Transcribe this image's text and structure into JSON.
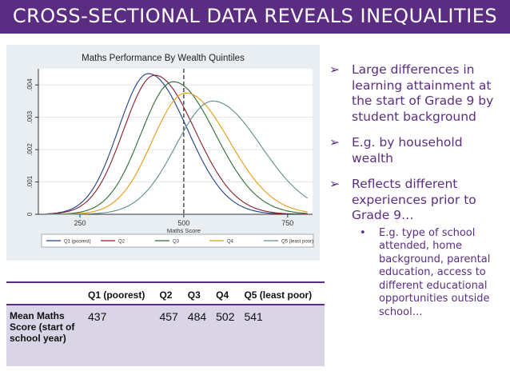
{
  "slide": {
    "title": "CROSS-SECTIONAL DATA REVEALS INEQUALITIES"
  },
  "chart_data": {
    "type": "line",
    "title": "Maths Performance By Wealth Quintiles",
    "xlabel": "Maths Score",
    "ylabel": "",
    "xlim": [
      150,
      810
    ],
    "ylim": [
      0,
      0.0045
    ],
    "x_ticks": [
      250,
      500,
      750
    ],
    "y_ticks": [
      0,
      0.001,
      0.002,
      0.003,
      0.004
    ],
    "x_tick_labels": [
      "250",
      "500",
      "750"
    ],
    "y_tick_labels": [
      "0",
      ".001",
      ".002",
      ".003",
      ".004"
    ],
    "reference_line_x": 500,
    "grid": true,
    "legend_position": "bottom",
    "series": [
      {
        "name": "Q1 (poorest)",
        "color": "#1f3e8c",
        "mean": 437,
        "peak_x": 415,
        "peak_y": 0.00435,
        "sd": 85
      },
      {
        "name": "Q2",
        "color": "#8c1a2c",
        "mean": 457,
        "peak_x": 430,
        "peak_y": 0.0043,
        "sd": 88
      },
      {
        "name": "Q3",
        "color": "#2e6b33",
        "mean": 484,
        "peak_x": 475,
        "peak_y": 0.0041,
        "sd": 92
      },
      {
        "name": "Q4",
        "color": "#e69a12",
        "mean": 502,
        "peak_x": 505,
        "peak_y": 0.00375,
        "sd": 95
      },
      {
        "name": "Q5 (least poor)",
        "color": "#5f8c8c",
        "mean": 541,
        "peak_x": 570,
        "peak_y": 0.0035,
        "sd": 105
      }
    ]
  },
  "bullets": [
    "Large differences in learning attainment at the start of Grade 9 by student background",
    "E.g. by household wealth",
    "Reflects different experiences prior to Grade 9…"
  ],
  "sub_bullets": [
    "E.g. type of school attended, home background, parental education, access to different educational opportunities outside school…"
  ],
  "table": {
    "headers": [
      "",
      "Q1 (poorest)",
      "Q2",
      "Q3",
      "Q4",
      "Q5 (least poor)"
    ],
    "row_label": "Mean Maths Score (start of school year)",
    "values": [
      "437",
      "457",
      "484",
      "502",
      "541"
    ]
  }
}
